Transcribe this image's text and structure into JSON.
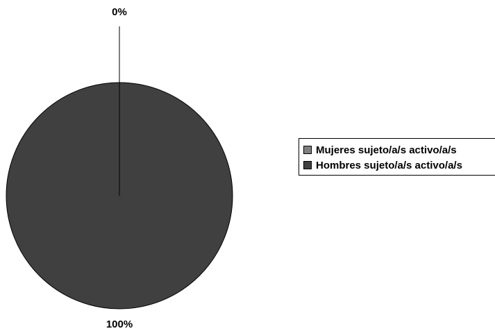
{
  "chart_data": {
    "type": "pie",
    "categories": [
      "Mujeres sujeto/a/s activo/a/s",
      "Hombres sujeto/a/s activo/a/s"
    ],
    "values": [
      0,
      100
    ],
    "data_labels": [
      "0%",
      "100%"
    ],
    "colors": [
      "#808080",
      "#404040"
    ],
    "legend_position": "right",
    "title": ""
  }
}
